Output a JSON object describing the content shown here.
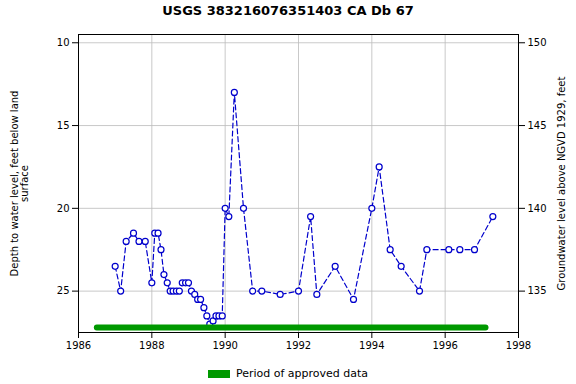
{
  "chart_data": {
    "type": "line",
    "title": "USGS 383216076351403 CA Db  67",
    "ylabel": "Depth to water level, feet below land\nsurface",
    "y2label": "Groundwater level above NGVD 1929, feet",
    "x": [
      1987.0,
      1987.15,
      1987.3,
      1987.5,
      1987.65,
      1987.82,
      1988.0,
      1988.08,
      1988.17,
      1988.25,
      1988.33,
      1988.42,
      1988.5,
      1988.58,
      1988.67,
      1988.75,
      1988.83,
      1988.92,
      1989.0,
      1989.08,
      1989.17,
      1989.25,
      1989.33,
      1989.42,
      1989.5,
      1989.58,
      1989.67,
      1989.75,
      1989.83,
      1989.92,
      1990.0,
      1990.1,
      1990.25,
      1990.5,
      1990.75,
      1991.0,
      1991.5,
      1992.0,
      1992.33,
      1992.5,
      1993.0,
      1993.5,
      1994.0,
      1994.2,
      1994.5,
      1994.8,
      1995.3,
      1995.5,
      1996.1,
      1996.4,
      1996.8,
      1997.3
    ],
    "series": [
      {
        "color": "#0000cc",
        "line_style": "dashed",
        "marker": "circle",
        "values": [
          23.5,
          25.0,
          22.0,
          21.5,
          22.0,
          22.0,
          24.5,
          21.5,
          21.5,
          22.5,
          24.0,
          24.5,
          25.0,
          25.0,
          25.0,
          25.0,
          24.5,
          24.5,
          24.5,
          25.0,
          25.2,
          25.5,
          25.5,
          26.0,
          26.5,
          27.0,
          26.8,
          26.5,
          26.5,
          26.5,
          20.0,
          20.5,
          13.0,
          20.0,
          25.0,
          25.0,
          25.2,
          25.0,
          20.5,
          25.2,
          23.5,
          25.5,
          20.0,
          17.5,
          22.5,
          23.5,
          25.0,
          22.5,
          22.5,
          22.5,
          22.5,
          20.5
        ]
      },
      {
        "name": "Period of approved data",
        "color": "#009900",
        "type": "line",
        "x": [
          1986.5,
          1997.1
        ],
        "values": [
          27.2,
          27.2
        ]
      }
    ],
    "xlim": [
      1986,
      1998
    ],
    "xticks": [
      1986,
      1988,
      1990,
      1992,
      1994,
      1996,
      1998
    ],
    "ylim": [
      27.5,
      9.5
    ],
    "yticks": [
      10,
      15,
      20,
      25
    ],
    "y2lim": [
      132.5,
      150.5
    ],
    "y2ticks": [
      135,
      140,
      145,
      150
    ],
    "grid": true,
    "legend": "bottom"
  }
}
